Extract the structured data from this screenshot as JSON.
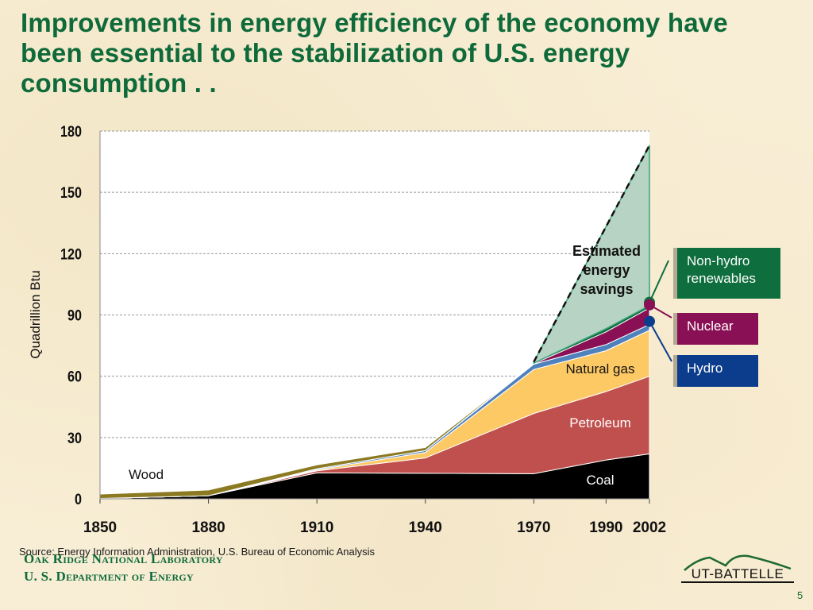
{
  "slide": {
    "title": "Improvements in energy efficiency of the economy have been essential to the stabilization of U.S. energy consumption . .",
    "source": "Source:  Energy Information Administration, U.S. Bureau of Economic Analysis",
    "org_line1": "Oak Ridge National Laboratory",
    "org_line2": "U. S. Department of Energy",
    "logo_text": "UT-BATTELLE",
    "page_number": "5"
  },
  "callouts": {
    "renewables": "Non-hydro renewables",
    "nuclear": "Nuclear",
    "hydro": "Hydro"
  },
  "chart_data": {
    "type": "area",
    "stacked": true,
    "title": "",
    "xlabel": "",
    "ylabel": "Quadrillion Btu",
    "x": [
      1850,
      1880,
      1910,
      1940,
      1970,
      1990,
      2002
    ],
    "xticks": [
      "1850",
      "1880",
      "1910",
      "1940",
      "1970",
      "1990",
      "2002"
    ],
    "yticks": [
      "0",
      "30",
      "60",
      "90",
      "120",
      "150",
      "180"
    ],
    "ylim": [
      0,
      180
    ],
    "grid": "horizontal-dashed",
    "series": [
      {
        "name": "Coal",
        "label": "Coal",
        "color": "#000000",
        "values": [
          0.2,
          1.5,
          12.7,
          12.5,
          12.3,
          19.0,
          22.0
        ]
      },
      {
        "name": "Petroleum",
        "label": "Petroleum",
        "color": "#c0504d",
        "values": [
          0,
          0,
          1.0,
          7.5,
          29.5,
          33.5,
          38.0
        ]
      },
      {
        "name": "Natural gas",
        "label": "Natural gas",
        "color": "#fdc965",
        "values": [
          0,
          0,
          0.5,
          2.7,
          21.5,
          20.0,
          22.5
        ]
      },
      {
        "name": "Hydro",
        "label": "Hydro",
        "color": "#4f81bd",
        "values": [
          0,
          0,
          0.5,
          0.9,
          2.6,
          3.0,
          2.8
        ]
      },
      {
        "name": "Nuclear",
        "label": "Nuclear",
        "color": "#8a1055",
        "values": [
          0,
          0,
          0,
          0,
          0.2,
          6.2,
          8.1
        ]
      },
      {
        "name": "Non-hydro renewables",
        "label": "Non-hydro renewables",
        "color": "#0f6e3e",
        "values": [
          0,
          0,
          0,
          0,
          0.3,
          1.6,
          1.2
        ]
      },
      {
        "name": "Wood",
        "label": "Wood",
        "color": "#8b7a22",
        "values": [
          2.1,
          2.8,
          1.9,
          1.5,
          0,
          0,
          0
        ]
      },
      {
        "name": "Estimated energy savings",
        "label": "Estimated energy savings",
        "color": "#b7d3c3",
        "values": [
          0,
          0,
          0,
          0,
          0,
          0,
          76.0
        ]
      }
    ],
    "savings_envelope": {
      "x": [
        1970,
        2002
      ],
      "values": [
        67,
        173
      ]
    },
    "annotations": [
      "Wood",
      "Coal",
      "Petroleum",
      "Natural gas",
      "Estimated energy savings"
    ]
  }
}
